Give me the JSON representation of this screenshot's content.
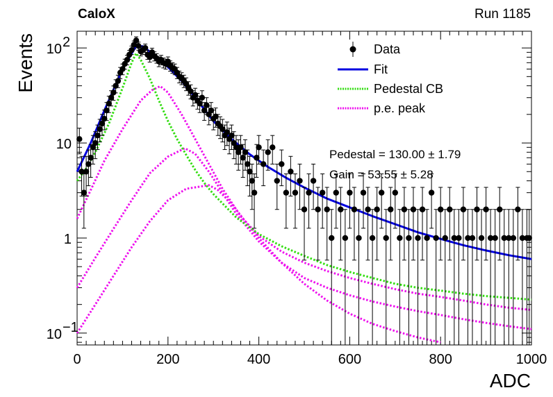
{
  "header": {
    "experiment": "CaloX",
    "run": "Run 1185"
  },
  "chart_data": {
    "type": "scatter",
    "xlabel": "ADC",
    "ylabel": "Events",
    "xlim": [
      0,
      1000
    ],
    "ylim": [
      0.075,
      150
    ],
    "yscale": "log",
    "x_ticks": [
      0,
      200,
      400,
      600,
      800,
      1000
    ],
    "y_ticks": [
      {
        "v": 0.1,
        "base": "10",
        "exp": "−1"
      },
      {
        "v": 1,
        "base": "1",
        "exp": ""
      },
      {
        "v": 10,
        "base": "10",
        "exp": ""
      },
      {
        "v": 100,
        "base": "10",
        "exp": "2"
      }
    ],
    "legend_position": "top-right",
    "legend": [
      {
        "label": "Data",
        "style": "marker",
        "color": "#000000"
      },
      {
        "label": "Fit",
        "style": "solid",
        "color": "#0000e0"
      },
      {
        "label": "Pedestal CB",
        "style": "dotted",
        "color": "#33dd11"
      },
      {
        "label": "p.e. peak",
        "style": "dotted",
        "color": "#ee11ee"
      }
    ],
    "annotations": [
      {
        "name": "Pedestal",
        "text": "Pedestal = 130.00 ± 1.79"
      },
      {
        "name": "Gain",
        "text": "Gain = 53.55 ± 5.28"
      }
    ],
    "data_points": [
      [
        5,
        11
      ],
      [
        10,
        5
      ],
      [
        15,
        3
      ],
      [
        20,
        5
      ],
      [
        25,
        6
      ],
      [
        30,
        7
      ],
      [
        35,
        9
      ],
      [
        40,
        10
      ],
      [
        45,
        12
      ],
      [
        50,
        14
      ],
      [
        55,
        16
      ],
      [
        60,
        18
      ],
      [
        65,
        22
      ],
      [
        70,
        26
      ],
      [
        75,
        30
      ],
      [
        80,
        34
      ],
      [
        85,
        40
      ],
      [
        90,
        45
      ],
      [
        95,
        55
      ],
      [
        100,
        60
      ],
      [
        105,
        68
      ],
      [
        110,
        75
      ],
      [
        115,
        85
      ],
      [
        120,
        95
      ],
      [
        125,
        108
      ],
      [
        130,
        120
      ],
      [
        135,
        105
      ],
      [
        140,
        92
      ],
      [
        145,
        95
      ],
      [
        150,
        100
      ],
      [
        155,
        85
      ],
      [
        160,
        80
      ],
      [
        165,
        90
      ],
      [
        170,
        82
      ],
      [
        175,
        78
      ],
      [
        180,
        72
      ],
      [
        185,
        75
      ],
      [
        190,
        70
      ],
      [
        195,
        68
      ],
      [
        200,
        72
      ],
      [
        205,
        65
      ],
      [
        210,
        62
      ],
      [
        215,
        60
      ],
      [
        220,
        55
      ],
      [
        225,
        50
      ],
      [
        230,
        48
      ],
      [
        235,
        45
      ],
      [
        240,
        42
      ],
      [
        245,
        38
      ],
      [
        250,
        35
      ],
      [
        255,
        30
      ],
      [
        260,
        32
      ],
      [
        265,
        28
      ],
      [
        270,
        26
      ],
      [
        275,
        30
      ],
      [
        280,
        22
      ],
      [
        285,
        25
      ],
      [
        290,
        20
      ],
      [
        295,
        22
      ],
      [
        300,
        18
      ],
      [
        305,
        19
      ],
      [
        310,
        16
      ],
      [
        315,
        15
      ],
      [
        320,
        14
      ],
      [
        325,
        12
      ],
      [
        330,
        13
      ],
      [
        335,
        11
      ],
      [
        340,
        12
      ],
      [
        345,
        10
      ],
      [
        350,
        9
      ],
      [
        355,
        8
      ],
      [
        360,
        9
      ],
      [
        365,
        7
      ],
      [
        370,
        8
      ],
      [
        375,
        6
      ],
      [
        380,
        5
      ],
      [
        385,
        4
      ],
      [
        390,
        3
      ],
      [
        395,
        7
      ],
      [
        400,
        9
      ],
      [
        410,
        6
      ],
      [
        420,
        8
      ],
      [
        430,
        9
      ],
      [
        440,
        4
      ],
      [
        450,
        6
      ],
      [
        460,
        3
      ],
      [
        470,
        5
      ],
      [
        480,
        3
      ],
      [
        490,
        4
      ],
      [
        500,
        2
      ],
      [
        510,
        3
      ],
      [
        520,
        4
      ],
      [
        530,
        2
      ],
      [
        540,
        3
      ],
      [
        550,
        2
      ],
      [
        560,
        1
      ],
      [
        570,
        3
      ],
      [
        580,
        2
      ],
      [
        590,
        1
      ],
      [
        600,
        3
      ],
      [
        610,
        2
      ],
      [
        620,
        1
      ],
      [
        630,
        3
      ],
      [
        640,
        2
      ],
      [
        650,
        1
      ],
      [
        660,
        2
      ],
      [
        670,
        3
      ],
      [
        680,
        1
      ],
      [
        690,
        2
      ],
      [
        700,
        3
      ],
      [
        710,
        1
      ],
      [
        720,
        2
      ],
      [
        730,
        1
      ],
      [
        740,
        2
      ],
      [
        750,
        1
      ],
      [
        760,
        2
      ],
      [
        770,
        1
      ],
      [
        780,
        3
      ],
      [
        790,
        1
      ],
      [
        800,
        2
      ],
      [
        810,
        1
      ],
      [
        820,
        2
      ],
      [
        830,
        1
      ],
      [
        840,
        1
      ],
      [
        850,
        2
      ],
      [
        860,
        1
      ],
      [
        870,
        1
      ],
      [
        880,
        2
      ],
      [
        890,
        1
      ],
      [
        900,
        2
      ],
      [
        910,
        1
      ],
      [
        920,
        1
      ],
      [
        930,
        2
      ],
      [
        940,
        1
      ],
      [
        950,
        1
      ],
      [
        960,
        1
      ],
      [
        970,
        2
      ],
      [
        980,
        1
      ],
      [
        990,
        1
      ],
      [
        995,
        1
      ]
    ],
    "curves": {
      "fit": [
        [
          0,
          5
        ],
        [
          30,
          10
        ],
        [
          60,
          22
        ],
        [
          100,
          60
        ],
        [
          130,
          105
        ],
        [
          145,
          104
        ],
        [
          170,
          84
        ],
        [
          200,
          63
        ],
        [
          230,
          45
        ],
        [
          260,
          30
        ],
        [
          300,
          17
        ],
        [
          340,
          11
        ],
        [
          380,
          7.6
        ],
        [
          420,
          5.6
        ],
        [
          460,
          4.3
        ],
        [
          500,
          3.4
        ],
        [
          550,
          2.6
        ],
        [
          600,
          2.1
        ],
        [
          650,
          1.7
        ],
        [
          700,
          1.4
        ],
        [
          750,
          1.15
        ],
        [
          800,
          0.98
        ],
        [
          850,
          0.84
        ],
        [
          900,
          0.74
        ],
        [
          950,
          0.66
        ],
        [
          1000,
          0.6
        ]
      ],
      "pedestal": [
        [
          0,
          4
        ],
        [
          20,
          5.4
        ],
        [
          40,
          8
        ],
        [
          70,
          16
        ],
        [
          100,
          38
        ],
        [
          120,
          70
        ],
        [
          130,
          88
        ],
        [
          140,
          75
        ],
        [
          160,
          48
        ],
        [
          180,
          28
        ],
        [
          200,
          17
        ],
        [
          220,
          11
        ],
        [
          240,
          7.5
        ],
        [
          260,
          5.2
        ],
        [
          280,
          3.8
        ],
        [
          300,
          2.9
        ],
        [
          350,
          1.65
        ],
        [
          400,
          1.1
        ],
        [
          450,
          0.82
        ],
        [
          500,
          0.65
        ],
        [
          550,
          0.52
        ],
        [
          600,
          0.44
        ],
        [
          650,
          0.38
        ],
        [
          700,
          0.33
        ],
        [
          750,
          0.3
        ],
        [
          800,
          0.28
        ],
        [
          850,
          0.26
        ],
        [
          900,
          0.245
        ],
        [
          950,
          0.235
        ],
        [
          1000,
          0.225
        ]
      ],
      "pe1": [
        [
          0,
          1.6
        ],
        [
          30,
          3.2
        ],
        [
          60,
          6.5
        ],
        [
          100,
          14
        ],
        [
          140,
          28
        ],
        [
          165,
          36
        ],
        [
          183,
          39.6
        ],
        [
          200,
          34
        ],
        [
          230,
          20
        ],
        [
          260,
          11
        ],
        [
          290,
          6
        ],
        [
          320,
          3.3
        ],
        [
          360,
          1.7
        ],
        [
          400,
          1.05
        ],
        [
          450,
          0.72
        ],
        [
          500,
          0.55
        ],
        [
          550,
          0.45
        ],
        [
          600,
          0.38
        ],
        [
          650,
          0.33
        ],
        [
          700,
          0.29
        ],
        [
          750,
          0.26
        ],
        [
          800,
          0.24
        ],
        [
          850,
          0.22
        ],
        [
          900,
          0.2
        ],
        [
          950,
          0.185
        ],
        [
          1000,
          0.175
        ]
      ],
      "pe2": [
        [
          0,
          0.3
        ],
        [
          40,
          0.62
        ],
        [
          80,
          1.25
        ],
        [
          120,
          2.5
        ],
        [
          160,
          4.8
        ],
        [
          200,
          7.2
        ],
        [
          237,
          8.8
        ],
        [
          260,
          7.7
        ],
        [
          290,
          5
        ],
        [
          320,
          3
        ],
        [
          350,
          1.8
        ],
        [
          400,
          0.92
        ],
        [
          450,
          0.55
        ],
        [
          500,
          0.38
        ],
        [
          550,
          0.3
        ],
        [
          600,
          0.25
        ],
        [
          650,
          0.215
        ],
        [
          700,
          0.19
        ],
        [
          750,
          0.17
        ],
        [
          800,
          0.155
        ],
        [
          850,
          0.14
        ],
        [
          900,
          0.128
        ],
        [
          950,
          0.118
        ],
        [
          1000,
          0.11
        ]
      ],
      "pe3": [
        [
          0,
          0.1
        ],
        [
          40,
          0.2
        ],
        [
          80,
          0.4
        ],
        [
          120,
          0.8
        ],
        [
          160,
          1.5
        ],
        [
          200,
          2.5
        ],
        [
          240,
          3.3
        ],
        [
          290,
          3.6
        ],
        [
          310,
          3.2
        ],
        [
          340,
          2.3
        ],
        [
          370,
          1.5
        ],
        [
          400,
          1
        ],
        [
          450,
          0.55
        ],
        [
          500,
          0.33
        ],
        [
          550,
          0.22
        ],
        [
          600,
          0.16
        ],
        [
          650,
          0.125
        ],
        [
          700,
          0.105
        ],
        [
          750,
          0.09
        ],
        [
          800,
          0.08
        ],
        [
          850,
          0.072
        ]
      ]
    }
  }
}
